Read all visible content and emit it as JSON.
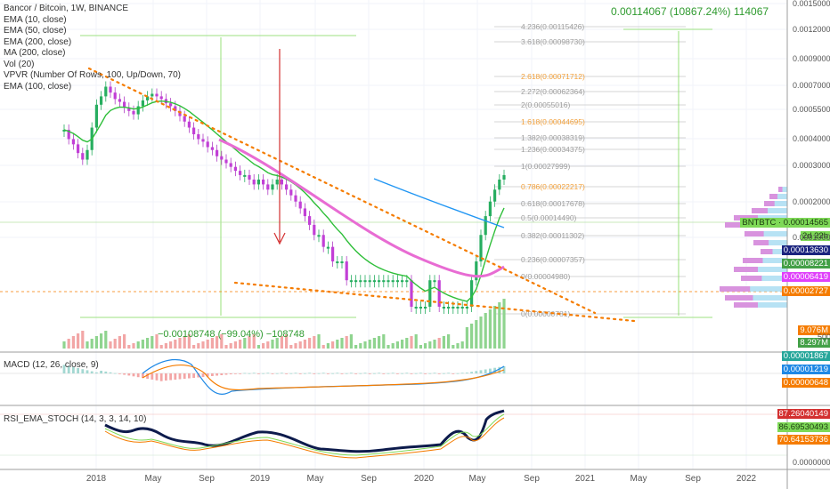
{
  "chart_data": {
    "type": "line",
    "title": "Bancor / Bitcoin, 1W, BINANCE",
    "indicators": [
      "EMA (10, close)",
      "EMA (50, close)",
      "EMA (200, close)",
      "MA (200, close)",
      "Vol (20)",
      "VPVR (Number Of Rows, 100, Up/Down, 70)",
      "EMA (100, close)"
    ],
    "x_ticks": [
      "2018",
      "May",
      "Sep",
      "2019",
      "May",
      "Sep",
      "2020",
      "May",
      "Sep",
      "2021",
      "May",
      "Sep",
      "2022"
    ],
    "y_ticks": [
      "0.00150000",
      "0.00120000",
      "0.00090000",
      "0.00070000",
      "0.00055000",
      "0.00040000",
      "0.00030000",
      "0.00020000",
      "0.00010000",
      "0.00002000",
      "0.00000000"
    ],
    "fib_levels": [
      {
        "label": "4.236(0.00115426)",
        "color": "#9e9e9e"
      },
      {
        "label": "3.618(0.00098730)",
        "color": "#9e9e9e"
      },
      {
        "label": "2.618(0.00071712)",
        "color": "#f2a03a"
      },
      {
        "label": "2.272(0.00062364)",
        "color": "#9e9e9e"
      },
      {
        "label": "2(0.00055016)",
        "color": "#9e9e9e"
      },
      {
        "label": "1.618(0.00044695)",
        "color": "#f2a03a"
      },
      {
        "label": "1.382(0.00038319)",
        "color": "#9e9e9e"
      },
      {
        "label": "1.236(0.00034375)",
        "color": "#9e9e9e"
      },
      {
        "label": "1(0.00027999)",
        "color": "#9e9e9e"
      },
      {
        "label": "0.786(0.00022217)",
        "color": "#f2a03a"
      },
      {
        "label": "0.618(0.00017678)",
        "color": "#9e9e9e"
      },
      {
        "label": "0.5(0.00014490)",
        "color": "#9e9e9e"
      },
      {
        "label": "0.382(0.00011302)",
        "color": "#9e9e9e"
      },
      {
        "label": "0.236(0.00007357)",
        "color": "#9e9e9e"
      },
      {
        "label": "0(0.00004980)",
        "color": "#9e9e9e"
      },
      {
        "label": "0(0.00000781)",
        "color": "#9e9e9e"
      }
    ],
    "measure_up": "0.00114067 (10867.24%) 114067",
    "measure_down": "−0.00108748 (−99.04%) −108748",
    "price_tags": [
      {
        "label": "BNTBTC",
        "value": "0.00014565",
        "bg": "#7ed957",
        "fg": "#1b3a10"
      },
      {
        "label": "",
        "value": "2d 22h",
        "bg": "#7ed957",
        "fg": "#1b3a10"
      },
      {
        "label": "",
        "value": "0.00013630",
        "bg": "#1a237e",
        "fg": "#ffffff"
      },
      {
        "label": "",
        "value": "0.00008221",
        "bg": "#43a047",
        "fg": "#ffffff"
      },
      {
        "label": "",
        "value": "0.00006419",
        "bg": "#e040fb",
        "fg": "#ffffff"
      },
      {
        "label": "",
        "value": "0.00002727",
        "bg": "#f57c00",
        "fg": "#ffffff"
      }
    ],
    "volume_tags": [
      {
        "value": "9.076M",
        "bg": "#f57c00",
        "fg": "#ffffff"
      },
      {
        "value": "8.297M",
        "bg": "#43a047",
        "fg": "#ffffff"
      }
    ],
    "volume_axis": "500",
    "macd_label": "MACD (12, 26, close, 9)",
    "macd_tags": [
      {
        "value": "0.00001867",
        "bg": "#26a69a",
        "fg": "#ffffff"
      },
      {
        "value": "0.00001219",
        "bg": "#1e88e5",
        "fg": "#ffffff"
      },
      {
        "value": "0.00000648",
        "bg": "#f57c00",
        "fg": "#ffffff"
      }
    ],
    "rsi_label": "RSI_EMA_STOCH (14, 3, 3, 14, 10)",
    "rsi_tags": [
      {
        "value": "87.26040149",
        "bg": "#d32f2f",
        "fg": "#ffffff"
      },
      {
        "value": "86.69530493",
        "bg": "#7ed957",
        "fg": "#1b3a10"
      },
      {
        "value": "70.64153736",
        "bg": "#f57c00",
        "fg": "#ffffff"
      }
    ],
    "rsi_axis": "0.00000000",
    "price_series": [
      0.0003,
      0.00026,
      0.00024,
      0.00021,
      0.00019,
      0.00022,
      0.00031,
      0.00044,
      0.0005,
      0.00058,
      0.00053,
      0.00048,
      0.00046,
      0.00042,
      0.0004,
      0.00038,
      0.00043,
      0.00047,
      0.0005,
      0.00052,
      0.0005,
      0.00048,
      0.00045,
      0.00043,
      0.0004,
      0.00037,
      0.00034,
      0.00031,
      0.00028,
      0.00026,
      0.00025,
      0.00023,
      0.00022,
      0.0002,
      0.00019,
      0.00018,
      0.00017,
      0.00016,
      0.00015,
      0.00015,
      0.00014,
      0.00013,
      0.00014,
      0.00013,
      0.00012,
      0.00013,
      0.00014,
      0.00013,
      0.00012,
      0.00011,
      0.0001,
      9e-05,
      8e-05,
      7e-05,
      6e-05,
      6e-05,
      5e-05,
      5e-05,
      4e-05,
      4e-05,
      4e-05,
      3e-05,
      3e-05,
      3e-05,
      3e-05,
      3e-05,
      3e-05,
      3e-05,
      3e-05,
      3e-05,
      3e-05,
      3e-05,
      3e-05,
      3e-05,
      3e-05,
      2e-05,
      2e-05,
      2e-05,
      2e-05,
      3e-05,
      3e-05,
      2e-05,
      2e-05,
      2e-05,
      2e-05,
      2e-05,
      2e-05,
      2e-05,
      3e-05,
      4e-05,
      6e-05,
      8e-05,
      0.0001,
      0.00012,
      0.00014,
      0.00015
    ]
  }
}
